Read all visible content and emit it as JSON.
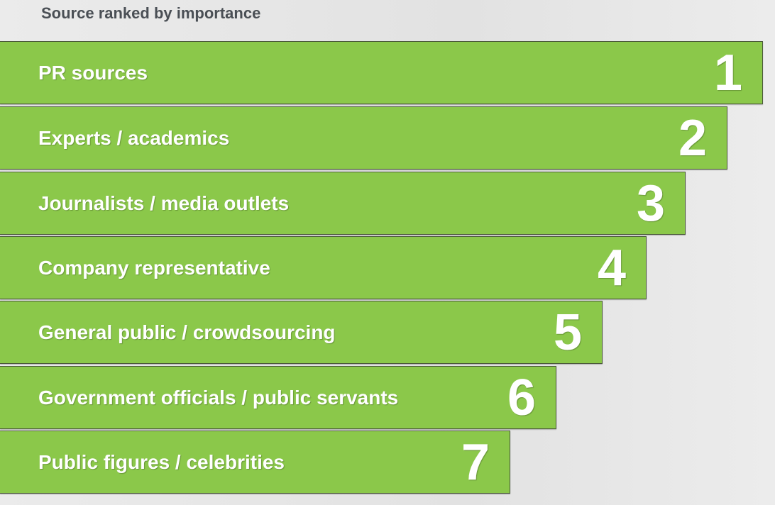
{
  "title": "Source ranked by importance",
  "items": [
    {
      "label": "PR sources",
      "rank": "1"
    },
    {
      "label": "Experts / academics",
      "rank": "2"
    },
    {
      "label": "Journalists / media outlets",
      "rank": "3"
    },
    {
      "label": "Company representative",
      "rank": "4"
    },
    {
      "label": "General public / crowdsourcing",
      "rank": "5"
    },
    {
      "label": "Government officials / public servants",
      "rank": "6"
    },
    {
      "label": "Public figures / celebrities",
      "rank": "7"
    }
  ]
}
